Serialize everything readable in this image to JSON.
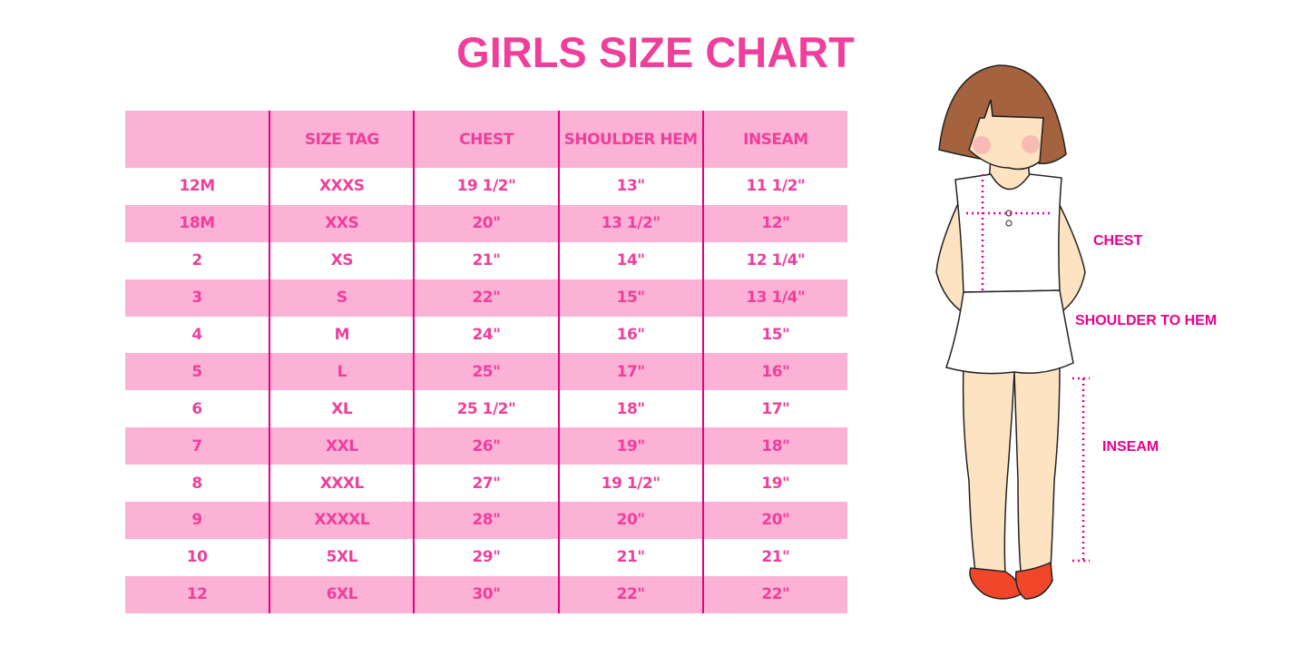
{
  "title": "GIRLS SIZE CHART",
  "table": {
    "headers": [
      "",
      "SIZE TAG",
      "CHEST",
      "SHOULDER HEM",
      "INSEAM"
    ],
    "rows": [
      [
        "12M",
        "XXXS",
        "19 1/2\"",
        "13\"",
        "11 1/2\""
      ],
      [
        "18M",
        "XXS",
        "20\"",
        "13 1/2\"",
        "12\""
      ],
      [
        "2",
        "XS",
        "21\"",
        "14\"",
        "12 1/4\""
      ],
      [
        "3",
        "S",
        "22\"",
        "15\"",
        "13 1/4\""
      ],
      [
        "4",
        "M",
        "24\"",
        "16\"",
        "15\""
      ],
      [
        "5",
        "L",
        "25\"",
        "17\"",
        "16\""
      ],
      [
        "6",
        "XL",
        "25 1/2\"",
        "18\"",
        "17\""
      ],
      [
        "7",
        "XXL",
        "26\"",
        "19\"",
        "18\""
      ],
      [
        "8",
        "XXXL",
        "27\"",
        "19 1/2\"",
        "19\""
      ],
      [
        "9",
        "XXXXL",
        "28\"",
        "20\"",
        "20\""
      ],
      [
        "10",
        "5XL",
        "29\"",
        "21\"",
        "21\""
      ],
      [
        "12",
        "6XL",
        "30\"",
        "22\"",
        "22\""
      ]
    ]
  },
  "illustration": {
    "labels": {
      "chest": "CHEST",
      "shoulder_to_hem": "SHOULDER TO HEM",
      "inseam": "INSEAM"
    }
  },
  "colors": {
    "accent": "#ef3f9b",
    "row_fill": "#fcb1d6",
    "divider": "#e6007e",
    "measure": "#ec008c"
  }
}
